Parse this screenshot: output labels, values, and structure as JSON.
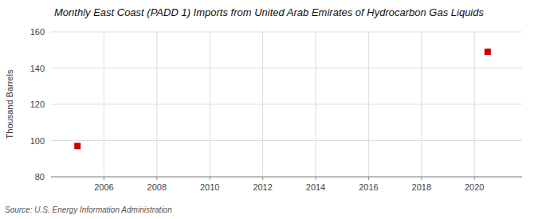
{
  "chart_data": {
    "type": "scatter",
    "title": "Monthly East Coast (PADD 1) Imports from United Arab Emirates of Hydrocarbon Gas Liquids",
    "ylabel": "Thousand Barrels",
    "annotations": [
      "Source: U.S. Energy Information Administration"
    ],
    "x": [
      2005.0,
      2020.5
    ],
    "values": [
      97,
      149
    ],
    "color": "#cc0000",
    "marker": "square",
    "xlim": [
      2004.0,
      2021.8
    ],
    "ylim": [
      80,
      160
    ],
    "xticks": [
      2006,
      2008,
      2010,
      2012,
      2014,
      2016,
      2018,
      2020
    ],
    "yticks": [
      80,
      100,
      120,
      140,
      160
    ],
    "grid": true
  }
}
